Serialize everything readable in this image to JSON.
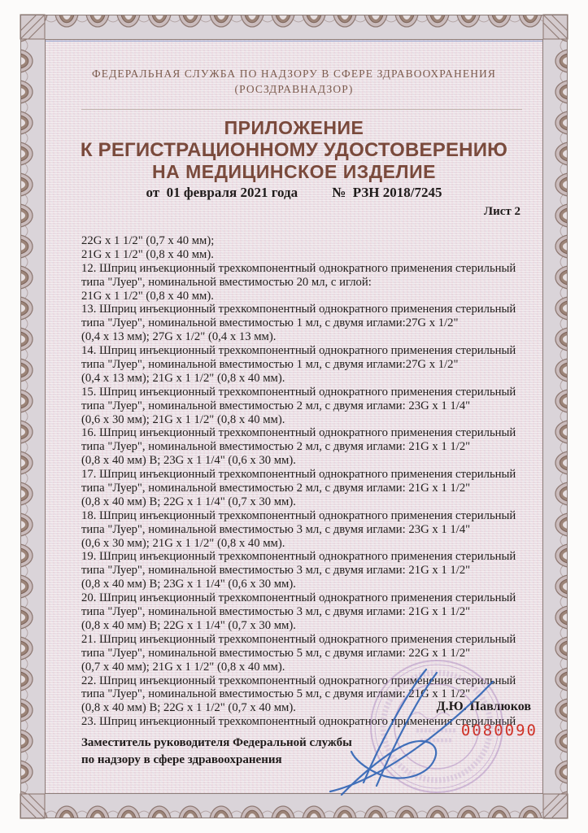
{
  "page": {
    "header_line1": "ФЕДЕРАЛЬНАЯ СЛУЖБА ПО НАДЗОРУ В СФЕРЕ ЗДРАВООХРАНЕНИЯ",
    "header_line2": "(РОСЗДРАВНАДЗОР)",
    "title_line1": "ПРИЛОЖЕНИЕ",
    "title_line2": "К РЕГИСТРАЦИОННОМУ УДОСТОВЕРЕНИЮ",
    "title_line3": "НА МЕДИЦИНСКОЕ ИЗДЕЛИЕ",
    "date_label": "от  01 февраля 2021 года",
    "reg_number_label": "№  РЗН 2018/7245",
    "sheet_label": "Лист 2"
  },
  "body": {
    "lines": [
      "22G x 1 1/2\" (0,7 x 40 мм);",
      "21G x 1 1/2\" (0,8 x 40 мм).",
      "12. Шприц инъекционный трехкомпонентный однократного применения стерильный",
      "типа \"Луер\", номинальной вместимостью 20 мл, с иглой:",
      "21G x 1 1/2\" (0,8 x 40 мм).",
      "13. Шприц инъекционный трехкомпонентный однократного применения стерильный",
      "типа \"Луер\", номинальной вместимостью 1 мл, с двумя иглами:27G x 1/2\"",
      "(0,4 x 13 мм); 27G x 1/2\" (0,4 x 13 мм).",
      "14. Шприц инъекционный трехкомпонентный однократного применения стерильный",
      "типа \"Луер\", номинальной вместимостью 1 мл, с двумя иглами:27G x 1/2\"",
      "(0,4 x 13 мм); 21G x 1 1/2\" (0,8 x 40 мм).",
      "15. Шприц инъекционный трехкомпонентный однократного применения стерильный",
      "типа \"Луер\", номинальной вместимостью 2 мл, с двумя иглами: 23G x 1 1/4\"",
      "(0,6 x 30 мм); 21G x 1 1/2\" (0,8 x 40 мм).",
      "16. Шприц инъекционный трехкомпонентный однократного применения стерильный",
      "типа \"Луер\", номинальной вместимостью 2 мл, с двумя иглами: 21G x 1 1/2\"",
      "(0,8 x 40 мм) В; 23G x 1 1/4\" (0,6 x 30 мм).",
      "17. Шприц инъекционный трехкомпонентный однократного применения стерильный",
      "типа \"Луер\", номинальной вместимостью 2 мл, с двумя иглами: 21G x 1 1/2\"",
      "(0,8 x 40 мм) В; 22G x 1 1/4\" (0,7 x 30 мм).",
      "18. Шприц инъекционный трехкомпонентный однократного применения стерильный",
      "типа \"Луер\", номинальной вместимостью 3 мл, с двумя иглами: 23G x 1 1/4\"",
      "(0,6 x 30 мм); 21G x 1 1/2\" (0,8 x 40 мм).",
      "19. Шприц инъекционный трехкомпонентный однократного применения стерильный",
      "типа \"Луер\", номинальной вместимостью 3 мл, с двумя иглами: 21G x 1 1/2\"",
      "(0,8 x 40 мм) В; 23G x 1 1/4\" (0,6 x 30 мм).",
      "20. Шприц инъекционный трехкомпонентный однократного применения стерильный",
      "типа \"Луер\", номинальной вместимостью 3 мл, с двумя иглами: 21G x 1 1/2\"",
      "(0,8 x 40 мм) В; 22G x 1 1/4\" (0,7 x 30 мм).",
      "21. Шприц инъекционный трехкомпонентный однократного применения стерильный",
      "типа \"Луер\", номинальной вместимостью 5 мл, с двумя иглами: 22G x 1 1/2\"",
      "(0,7 x 40 мм); 21G x 1 1/2\" (0,8 x 40 мм).",
      "22. Шприц инъекционный трехкомпонентный однократного применения стерильный",
      "типа \"Луер\", номинальной вместимостью 5 мл, с двумя иглами: 21G x 1 1/2\"",
      "(0,8 x 40 мм) В; 22G x 1 1/2\" (0,7 x 40 мм).",
      "23. Шприц инъекционный трехкомпонентный однократного применения стерильный"
    ]
  },
  "footer": {
    "signer_title_line1": "Заместитель руководителя Федеральной службы",
    "signer_title_line2": "по надзору в сфере здравоохранения",
    "signer_name": "Д.Ю. Павлюков",
    "serial_number": "0080090"
  },
  "colors": {
    "title_accent": "#7a4a3c",
    "header_text": "#7c5c4e",
    "body_text": "#23201e",
    "serial_red": "#cf3126",
    "stamp_purple": "#9a6fb5",
    "signature_blue": "#2e63b5",
    "border_dark": "#8f7a74",
    "border_light": "#dad4d9",
    "inner_field": "#ebe1e5"
  }
}
